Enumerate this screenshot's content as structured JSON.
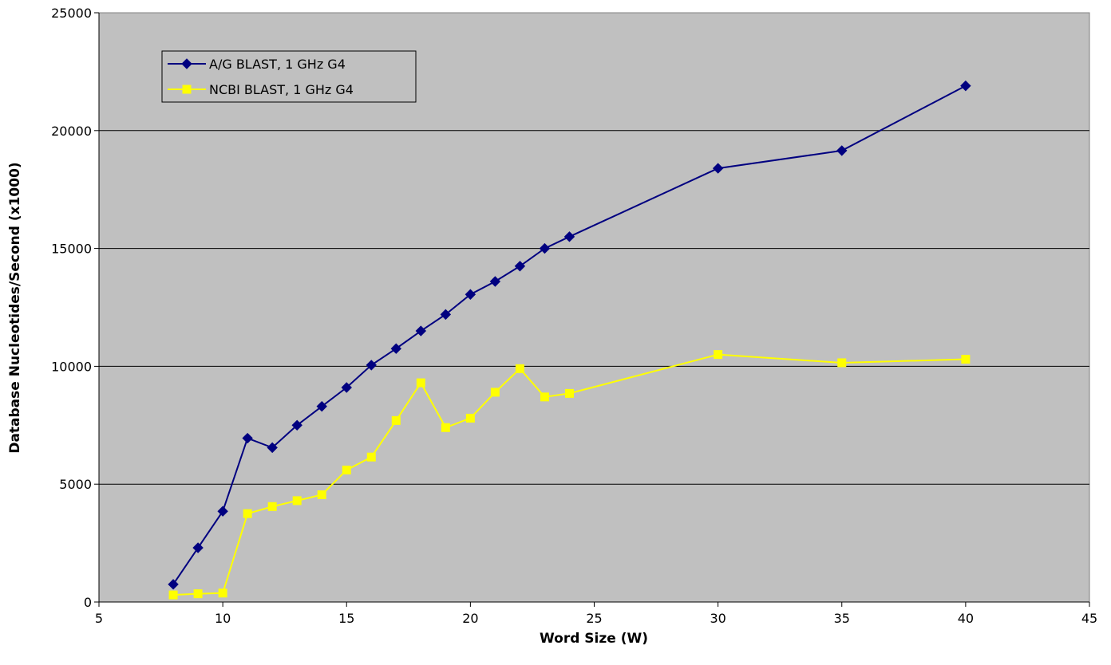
{
  "chart_data": {
    "type": "line",
    "title": "",
    "xlabel": "Word Size (W)",
    "ylabel": "Database Nucleotides/Second (x1000)",
    "xlim": [
      5,
      45
    ],
    "ylim": [
      0,
      25000
    ],
    "x_ticks": [
      5,
      10,
      15,
      20,
      25,
      30,
      35,
      40,
      45
    ],
    "y_ticks": [
      0,
      5000,
      10000,
      15000,
      20000,
      25000
    ],
    "grid": "horizontal",
    "legend_position": "top-left",
    "plot_background": "#c0c0c0",
    "series": [
      {
        "name": "A/G BLAST, 1 GHz G4",
        "color": "#000080",
        "marker": "diamond",
        "x": [
          8,
          9,
          10,
          11,
          12,
          13,
          14,
          15,
          16,
          17,
          18,
          19,
          20,
          21,
          22,
          23,
          24,
          30,
          35,
          40
        ],
        "y": [
          750,
          2300,
          3850,
          6950,
          6550,
          7500,
          8300,
          9100,
          10050,
          10750,
          11500,
          12200,
          13050,
          13600,
          14250,
          15000,
          15500,
          18400,
          19150,
          21900
        ]
      },
      {
        "name": "NCBI BLAST, 1 GHz G4",
        "color": "#ffff00",
        "marker": "square",
        "x": [
          8,
          9,
          10,
          11,
          12,
          13,
          14,
          15,
          16,
          17,
          18,
          19,
          20,
          21,
          22,
          23,
          24,
          30,
          35,
          40
        ],
        "y": [
          300,
          350,
          380,
          3750,
          4050,
          4300,
          4550,
          5600,
          6150,
          7700,
          9300,
          7400,
          7800,
          8900,
          9900,
          8700,
          8850,
          10500,
          10150,
          10300
        ]
      }
    ]
  }
}
